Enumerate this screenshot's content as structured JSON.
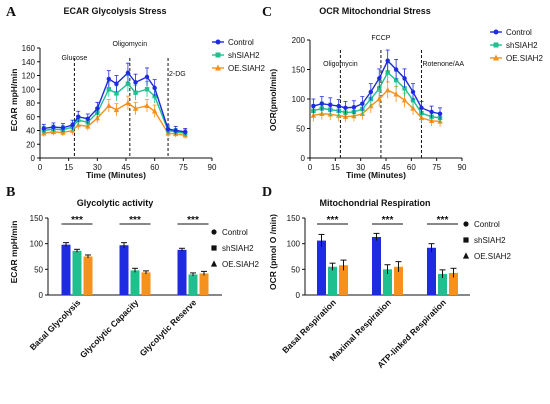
{
  "panels": {
    "A": {
      "letter": "A"
    },
    "B": {
      "letter": "B"
    },
    "C": {
      "letter": "C"
    },
    "D": {
      "letter": "D"
    }
  },
  "colors": {
    "Control": "#1f2be0",
    "shSIAH2": "#1fbf8f",
    "OE.SIAH2": "#f5921e"
  },
  "chart_data": [
    {
      "id": "A",
      "type": "line",
      "title": "ECAR Glycolysis Stress",
      "xlabel": "Time (Minutes)",
      "ylabel": "ECAR mpH/min",
      "xlim": [
        0,
        90
      ],
      "ylim": [
        0,
        160
      ],
      "xticks": [
        0,
        15,
        30,
        45,
        60,
        75,
        90
      ],
      "yticks": [
        0,
        20,
        40,
        60,
        80,
        100,
        120,
        140,
        160
      ],
      "legend_placement": "top-right",
      "injections": [
        {
          "x": 18,
          "label": "Glucose"
        },
        {
          "x": 47,
          "label": "Oligomycin"
        },
        {
          "x": 67,
          "label": "2-DG"
        }
      ],
      "x": [
        2,
        7,
        12,
        17,
        20,
        25,
        30,
        36,
        40,
        46,
        50,
        56,
        60,
        67,
        71,
        76
      ],
      "series": [
        {
          "name": "Control",
          "values": [
            43,
            45,
            44,
            48,
            60,
            57,
            72,
            115,
            108,
            124,
            110,
            118,
            102,
            42,
            40,
            38
          ],
          "err": [
            6,
            6,
            6,
            7,
            8,
            7,
            9,
            12,
            12,
            14,
            12,
            13,
            12,
            6,
            6,
            5
          ]
        },
        {
          "name": "shSIAH2",
          "values": [
            40,
            42,
            41,
            45,
            55,
            52,
            66,
            100,
            94,
            108,
            95,
            100,
            90,
            40,
            38,
            36
          ],
          "err": [
            6,
            6,
            6,
            6,
            7,
            7,
            8,
            11,
            11,
            12,
            11,
            11,
            10,
            6,
            5,
            5
          ]
        },
        {
          "name": "OE.SIAH2",
          "values": [
            36,
            38,
            37,
            40,
            48,
            46,
            58,
            76,
            70,
            80,
            72,
            76,
            68,
            36,
            35,
            33
          ],
          "err": [
            5,
            5,
            5,
            6,
            7,
            6,
            7,
            9,
            9,
            10,
            9,
            9,
            9,
            5,
            5,
            5
          ]
        }
      ]
    },
    {
      "id": "C",
      "type": "line",
      "title": "OCR Mitochondrial Stress",
      "xlabel": "Time (Minutes)",
      "ylabel": "OCR(pmol/min)",
      "xlim": [
        0,
        90
      ],
      "ylim": [
        0,
        200
      ],
      "xticks": [
        0,
        15,
        30,
        45,
        60,
        75,
        90
      ],
      "yticks": [
        0,
        50,
        100,
        150,
        200
      ],
      "legend_placement": "top-right",
      "injections": [
        {
          "x": 18,
          "label": "Oligomycin"
        },
        {
          "x": 42,
          "label": "FCCP"
        },
        {
          "x": 66,
          "label": "Rotenone/AA"
        }
      ],
      "x": [
        2,
        7,
        12,
        17,
        21,
        26,
        31,
        36,
        41,
        46,
        51,
        56,
        61,
        66,
        72,
        77
      ],
      "series": [
        {
          "name": "Control",
          "values": [
            88,
            92,
            90,
            88,
            85,
            86,
            92,
            112,
            135,
            165,
            150,
            135,
            112,
            85,
            78,
            75
          ],
          "err": [
            12,
            12,
            12,
            11,
            11,
            11,
            12,
            14,
            16,
            18,
            17,
            16,
            14,
            11,
            10,
            10
          ]
        },
        {
          "name": "shSIAH2",
          "values": [
            80,
            84,
            82,
            80,
            77,
            78,
            83,
            100,
            118,
            145,
            132,
            118,
            98,
            76,
            70,
            68
          ],
          "err": [
            11,
            11,
            11,
            10,
            10,
            10,
            11,
            13,
            14,
            16,
            15,
            14,
            13,
            10,
            9,
            9
          ]
        },
        {
          "name": "OE.SIAH2",
          "values": [
            72,
            75,
            74,
            72,
            70,
            71,
            75,
            88,
            100,
            115,
            108,
            98,
            84,
            68,
            63,
            62
          ],
          "err": [
            10,
            10,
            10,
            10,
            9,
            9,
            10,
            12,
            13,
            14,
            13,
            12,
            11,
            9,
            9,
            9
          ]
        }
      ]
    },
    {
      "id": "B",
      "type": "bar",
      "title": "Glycolytic activity",
      "ylabel": "ECAR mpH/min",
      "ylim": [
        0,
        150
      ],
      "yticks": [
        0,
        50,
        100,
        150
      ],
      "legend_placement": "top-right",
      "categories": [
        "Basal Glycolysis",
        "Glycolytic Capacity",
        "Glycolytic Reserve"
      ],
      "significance": [
        "***",
        "***",
        "***"
      ],
      "series": [
        {
          "name": "Control",
          "marker": "circle",
          "values": [
            98,
            97,
            88
          ],
          "err": [
            4,
            5,
            3
          ]
        },
        {
          "name": "shSIAH2",
          "marker": "square",
          "values": [
            86,
            48,
            40
          ],
          "err": [
            3,
            4,
            3
          ]
        },
        {
          "name": "OE.SIAH2",
          "marker": "triangle",
          "values": [
            75,
            44,
            42
          ],
          "err": [
            3,
            3,
            4
          ]
        }
      ]
    },
    {
      "id": "D",
      "type": "bar",
      "title": "Mitochondrial Respiration",
      "ylabel": "OCR (pmol O /min)",
      "ylim": [
        0,
        150
      ],
      "yticks": [
        0,
        50,
        100,
        150
      ],
      "legend_placement": "top-right",
      "categories": [
        "Basal Respiration",
        "Maximal Respiration",
        "ATP-linked Respiration"
      ],
      "significance": [
        "***",
        "***",
        "***"
      ],
      "series": [
        {
          "name": "Control",
          "marker": "circle",
          "values": [
            106,
            113,
            92
          ],
          "err": [
            12,
            7,
            8
          ]
        },
        {
          "name": "shSIAH2",
          "marker": "square",
          "values": [
            55,
            50,
            41
          ],
          "err": [
            7,
            9,
            8
          ]
        },
        {
          "name": "OE.SIAH2",
          "marker": "triangle",
          "values": [
            58,
            55,
            43
          ],
          "err": [
            10,
            10,
            9
          ]
        }
      ]
    }
  ]
}
